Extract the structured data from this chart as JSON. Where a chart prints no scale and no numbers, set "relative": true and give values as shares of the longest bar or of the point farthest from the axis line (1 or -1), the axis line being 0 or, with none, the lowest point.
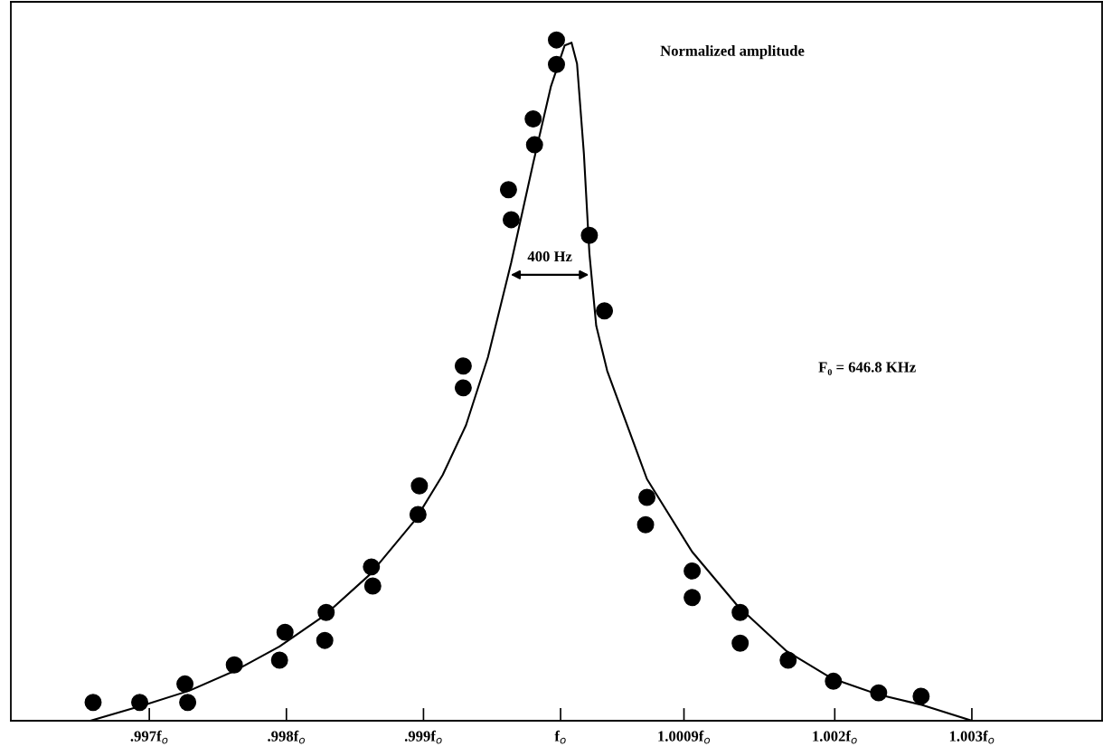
{
  "chart_data": {
    "type": "scatter",
    "relative": true,
    "tick_labels": "x",
    "grid": false,
    "legend": false,
    "xlim": [
      0.99599,
      1.00395
    ],
    "xticks": [
      {
        "value": 0.997,
        "label": ".997f$_{o}$"
      },
      {
        "value": 0.998,
        "label": ".998f$_{o}$"
      },
      {
        "value": 0.999,
        "label": ".999f$_{o}$"
      },
      {
        "value": 1.0,
        "label": "f$_{o}$"
      },
      {
        "value": 1.0009,
        "label": "1.0009f$_{o}$"
      },
      {
        "value": 1.002,
        "label": "1.002f$_{o}$"
      },
      {
        "value": 1.003,
        "label": "1.003f$_{o}$"
      }
    ],
    "annotations": [
      "Normalized amplitude",
      "F₀ = 646.8 KHz",
      "400 Hz"
    ],
    "series": [
      {
        "color": "#000000",
        "marker": "circle",
        "x": [
          0.99659,
          0.99693,
          0.99726,
          0.99728,
          0.99762,
          0.99795,
          0.99799,
          0.99828,
          0.99829,
          0.99862,
          0.99863,
          0.99896,
          0.99897,
          0.99929,
          0.99929,
          0.99962,
          0.99964,
          0.9998,
          0.99981,
          0.99997,
          0.99997,
          1.00021,
          1.00032,
          1.00063,
          1.00062,
          1.00096,
          1.00096,
          1.00131,
          1.00131,
          1.00166,
          1.00199,
          1.00232,
          1.00263
        ],
        "values": [
          0.027,
          0.027,
          0.054,
          0.027,
          0.082,
          0.089,
          0.13,
          0.118,
          0.159,
          0.226,
          0.198,
          0.303,
          0.345,
          0.521,
          0.489,
          0.78,
          0.736,
          0.884,
          0.846,
          1.0,
          0.964,
          0.713,
          0.602,
          0.328,
          0.288,
          0.22,
          0.181,
          0.159,
          0.114,
          0.089,
          0.058,
          0.041,
          0.036
        ]
      },
      {
        "type": "line",
        "color": "#000000",
        "marker": "none",
        "line_style": "solid",
        "x": [
          0.99657,
          0.99696,
          0.99729,
          0.99762,
          0.99795,
          0.99828,
          0.99861,
          0.99894,
          0.99914,
          0.99931,
          0.99947,
          0.99964,
          0.9998,
          0.99993,
          1.00003,
          1.00008,
          1.00012,
          1.00017,
          1.00021,
          1.00026,
          1.00034,
          1.00046,
          1.00063,
          1.00096,
          1.00129,
          1.00165,
          1.00198,
          1.00231,
          1.00264,
          1.003
        ],
        "values": [
          0.0,
          0.023,
          0.044,
          0.073,
          0.109,
          0.155,
          0.215,
          0.295,
          0.361,
          0.434,
          0.534,
          0.673,
          0.819,
          0.932,
          0.992,
          0.996,
          0.965,
          0.833,
          0.687,
          0.58,
          0.514,
          0.448,
          0.355,
          0.248,
          0.169,
          0.102,
          0.062,
          0.039,
          0.023,
          0.0
        ]
      }
    ]
  }
}
